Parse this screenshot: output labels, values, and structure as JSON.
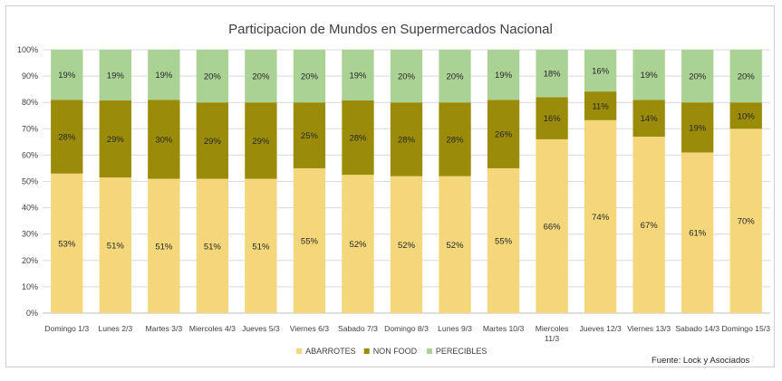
{
  "chart_data": {
    "type": "bar",
    "stacked": true,
    "percent_stacked": true,
    "title": "Participacion de Mundos en Supermercados Nacional",
    "categories": [
      "Domingo 1/3",
      "Lunes 2/3",
      "Martes 3/3",
      "Miercoles 4/3",
      "Jueves 5/3",
      "Viernes 6/3",
      "Sabado 7/3",
      "Domingo 8/3",
      "Lunes 9/3",
      "Martes 10/3",
      "Miercoles 11/3",
      "Jueves 12/3",
      "Viernes 13/3",
      "Sabado 14/3",
      "Domingo 15/3"
    ],
    "series": [
      {
        "name": "ABARROTES",
        "color": "#F3D77A",
        "values": [
          53,
          51,
          51,
          51,
          51,
          55,
          52,
          52,
          52,
          55,
          66,
          74,
          67,
          61,
          70
        ],
        "labels": [
          "53%",
          "51%",
          "51%",
          "51%",
          "51%",
          "55%",
          "52%",
          "52%",
          "52%",
          "55%",
          "66%",
          "74%",
          "67%",
          "61%",
          "70%"
        ]
      },
      {
        "name": "NON FOOD",
        "color": "#9A8C09",
        "values": [
          28,
          29,
          30,
          29,
          29,
          25,
          28,
          28,
          28,
          26,
          16,
          11,
          14,
          19,
          10
        ],
        "labels": [
          "28%",
          "29%",
          "30%",
          "29%",
          "29%",
          "25%",
          "28%",
          "28%",
          "28%",
          "26%",
          "16%",
          "11%",
          "14%",
          "19%",
          "10%"
        ]
      },
      {
        "name": "PERECIBLES",
        "color": "#ABD295",
        "values": [
          19,
          19,
          19,
          20,
          20,
          20,
          19,
          20,
          20,
          19,
          18,
          16,
          19,
          20,
          20
        ],
        "labels": [
          "19%",
          "19%",
          "19%",
          "20%",
          "20%",
          "20%",
          "19%",
          "20%",
          "20%",
          "19%",
          "18%",
          "16%",
          "19%",
          "20%",
          "20%"
        ]
      }
    ],
    "y_ticks": [
      "0%",
      "10%",
      "20%",
      "30%",
      "40%",
      "50%",
      "60%",
      "70%",
      "80%",
      "90%",
      "100%"
    ],
    "ylim": [
      0,
      100
    ],
    "grid": true,
    "legend_position": "bottom",
    "source_note": "Fuente: Lock y Asociados"
  }
}
